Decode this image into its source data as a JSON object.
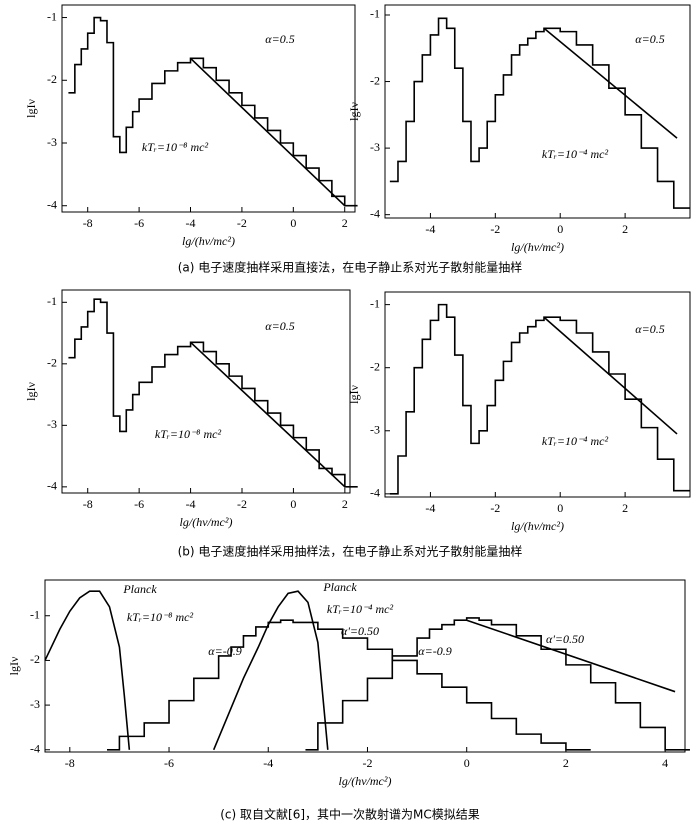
{
  "chart_data": [
    {
      "type": "line",
      "xlabel": "lg/(hν/mc²)",
      "ylabel": "lgIν",
      "xlim": [
        -9,
        2.4
      ],
      "ylim": [
        -4.1,
        -0.8
      ],
      "xticks": [
        -8,
        -6,
        -4,
        -2,
        0,
        2
      ],
      "yticks": [
        -1,
        -2,
        -3,
        -4
      ],
      "annotations": [
        "α=0.5",
        "kTᵣ=10⁻⁸ mc²"
      ],
      "series": [
        {
          "color": "#000",
          "step": true,
          "x": [
            -8.75,
            -8.5,
            -8.25,
            -8,
            -7.75,
            -7.5,
            -7.25,
            -7,
            -6.75,
            -6.5,
            -6.25,
            -6,
            -5.5,
            -5,
            -4.5,
            -4,
            -3.5,
            -3,
            -2.5,
            -2,
            -1.5,
            -1,
            -0.5,
            0,
            0.5,
            1,
            1.5,
            2
          ],
          "values": [
            -2.2,
            -1.75,
            -1.5,
            -1.25,
            -1.0,
            -1.05,
            -1.4,
            -2.9,
            -3.15,
            -2.75,
            -2.5,
            -2.3,
            -2.05,
            -1.85,
            -1.72,
            -1.65,
            -1.8,
            -2.0,
            -2.2,
            -2.4,
            -2.6,
            -2.8,
            -3.0,
            -3.2,
            -3.4,
            -3.6,
            -3.85,
            -4.0
          ]
        },
        {
          "color": "#000",
          "step": false,
          "x": [
            -4,
            2
          ],
          "values": [
            -1.65,
            -4.0
          ]
        }
      ]
    },
    {
      "type": "line",
      "xlabel": "lg/(hν/mc²)",
      "ylabel": "lgIν",
      "xlim": [
        -5.4,
        4.0
      ],
      "ylim": [
        -4.05,
        -0.85
      ],
      "xticks": [
        -4,
        -2,
        0,
        2
      ],
      "yticks": [
        -1,
        -2,
        -3,
        -4
      ],
      "annotations": [
        "α=0.5",
        "kTᵣ=10⁻⁴ mc²"
      ],
      "series": [
        {
          "color": "#000",
          "step": true,
          "x": [
            -5.25,
            -5,
            -4.75,
            -4.5,
            -4.25,
            -4,
            -3.75,
            -3.5,
            -3.25,
            -3,
            -2.75,
            -2.5,
            -2.25,
            -2,
            -1.75,
            -1.5,
            -1.25,
            -1,
            -0.75,
            -0.5,
            -0.25,
            0,
            0.5,
            1,
            1.5,
            2,
            2.5,
            3,
            3.5
          ],
          "values": [
            -3.5,
            -3.2,
            -2.6,
            -2.0,
            -1.6,
            -1.3,
            -1.05,
            -1.2,
            -1.8,
            -2.6,
            -3.2,
            -3.0,
            -2.6,
            -2.2,
            -1.9,
            -1.6,
            -1.45,
            -1.35,
            -1.25,
            -1.2,
            -1.2,
            -1.25,
            -1.45,
            -1.75,
            -2.1,
            -2.5,
            -3.0,
            -3.5,
            -3.9
          ]
        },
        {
          "color": "#000",
          "step": false,
          "x": [
            -0.5,
            3.6
          ],
          "values": [
            -1.2,
            -2.85
          ]
        }
      ]
    },
    {
      "type": "line",
      "xlabel": "lg/(hν/mc²)",
      "ylabel": "lgIν",
      "xlim": [
        -9,
        2.2
      ],
      "ylim": [
        -4.1,
        -0.8
      ],
      "xticks": [
        -8,
        -6,
        -4,
        -2,
        0,
        2
      ],
      "yticks": [
        -1,
        -2,
        -3,
        -4
      ],
      "annotations": [
        "α=0.5",
        "kTᵣ=10⁻⁸ mc²"
      ],
      "series": [
        {
          "color": "#000",
          "step": true,
          "x": [
            -8.75,
            -8.5,
            -8.25,
            -8,
            -7.75,
            -7.5,
            -7.25,
            -7,
            -6.75,
            -6.5,
            -6.25,
            -6,
            -5.5,
            -5,
            -4.5,
            -4,
            -3.5,
            -3,
            -2.5,
            -2,
            -1.5,
            -1,
            -0.5,
            0,
            0.5,
            1,
            1.5,
            2
          ],
          "values": [
            -1.9,
            -1.6,
            -1.4,
            -1.15,
            -0.95,
            -1.0,
            -1.5,
            -2.85,
            -3.1,
            -2.75,
            -2.5,
            -2.3,
            -2.05,
            -1.85,
            -1.72,
            -1.65,
            -1.8,
            -2.0,
            -2.2,
            -2.4,
            -2.6,
            -2.8,
            -3.0,
            -3.2,
            -3.4,
            -3.7,
            -3.8,
            -4.0
          ]
        },
        {
          "color": "#000",
          "step": false,
          "x": [
            -4,
            2
          ],
          "values": [
            -1.65,
            -4.0
          ]
        }
      ]
    },
    {
      "type": "line",
      "xlabel": "lg/(hν/mc²)",
      "ylabel": "lgIν",
      "xlim": [
        -5.4,
        4.0
      ],
      "ylim": [
        -4.05,
        -0.8
      ],
      "xticks": [
        -4,
        -2,
        0,
        2
      ],
      "yticks": [
        -1,
        -2,
        -3,
        -4
      ],
      "annotations": [
        "α=0.5",
        "kTᵣ=10⁻⁴ mc²"
      ],
      "series": [
        {
          "color": "#000",
          "step": true,
          "x": [
            -5.25,
            -5,
            -4.75,
            -4.5,
            -4.25,
            -4,
            -3.75,
            -3.5,
            -3.25,
            -3,
            -2.75,
            -2.5,
            -2.25,
            -2,
            -1.75,
            -1.5,
            -1.25,
            -1,
            -0.75,
            -0.5,
            -0.25,
            0,
            0.5,
            1,
            1.5,
            2,
            2.5,
            3,
            3.5
          ],
          "values": [
            -4.0,
            -3.4,
            -2.7,
            -2.0,
            -1.55,
            -1.25,
            -1.0,
            -1.2,
            -1.8,
            -2.6,
            -3.2,
            -3.0,
            -2.6,
            -2.2,
            -1.9,
            -1.6,
            -1.45,
            -1.35,
            -1.25,
            -1.2,
            -1.2,
            -1.25,
            -1.45,
            -1.75,
            -2.1,
            -2.5,
            -2.95,
            -3.45,
            -3.95
          ]
        },
        {
          "color": "#000",
          "step": false,
          "x": [
            -0.5,
            3.6
          ],
          "values": [
            -1.2,
            -3.05
          ]
        }
      ]
    },
    {
      "type": "line",
      "xlabel": "lg/(hν/mc²)",
      "ylabel": "lgIν",
      "xlim": [
        -8.5,
        4.4
      ],
      "ylim": [
        -4.05,
        -0.2
      ],
      "xticks": [
        -8,
        -6,
        -4,
        -2,
        0,
        2,
        4
      ],
      "yticks": [
        -1,
        -2,
        -3,
        -4
      ],
      "annotations": [
        "Planck",
        "kTᵣ=10⁻⁸ mc²",
        "α=-0.9",
        "Planck",
        "kTᵣ=10⁻⁴ mc²",
        "α'=0.50",
        "α=-0.9",
        "α'=0.50"
      ],
      "series": [
        {
          "color": "#000",
          "step": false,
          "x": [
            -8.5,
            -8.2,
            -8,
            -7.8,
            -7.6,
            -7.4,
            -7.2,
            -7,
            -6.9,
            -6.8
          ],
          "values": [
            -2.0,
            -1.3,
            -0.9,
            -0.6,
            -0.45,
            -0.45,
            -0.8,
            -1.7,
            -2.8,
            -4.0
          ]
        },
        {
          "color": "#000",
          "step": true,
          "x": [
            -7.25,
            -7,
            -6.5,
            -6,
            -5.5,
            -5,
            -4.75,
            -4.5,
            -4.25,
            -4,
            -3.75,
            -3.5,
            -3,
            -2.5,
            -2,
            -1.5,
            -1,
            -0.5,
            0,
            0.5,
            1,
            1.5,
            2
          ],
          "values": [
            -4.0,
            -3.7,
            -3.4,
            -2.9,
            -2.4,
            -1.9,
            -1.7,
            -1.45,
            -1.25,
            -1.15,
            -1.1,
            -1.15,
            -1.3,
            -1.5,
            -1.75,
            -2.0,
            -2.3,
            -2.6,
            -2.95,
            -3.3,
            -3.65,
            -3.85,
            -4.0
          ]
        },
        {
          "color": "#000",
          "step": false,
          "x": [
            -5.1,
            -4.8,
            -4.5,
            -4.2,
            -4,
            -3.8,
            -3.6,
            -3.4,
            -3.2,
            -3,
            -2.9,
            -2.8
          ],
          "values": [
            -4.0,
            -3.2,
            -2.4,
            -1.7,
            -1.2,
            -0.8,
            -0.5,
            -0.45,
            -0.7,
            -1.6,
            -2.8,
            -4.0
          ]
        },
        {
          "color": "#000",
          "step": true,
          "x": [
            -3.25,
            -3,
            -2.5,
            -2,
            -1.5,
            -1,
            -0.75,
            -0.5,
            -0.25,
            0,
            0.25,
            0.5,
            1,
            1.5,
            2,
            2.5,
            3,
            3.5,
            4
          ],
          "values": [
            -4.0,
            -3.4,
            -2.9,
            -2.4,
            -1.9,
            -1.5,
            -1.3,
            -1.2,
            -1.1,
            -1.05,
            -1.1,
            -1.2,
            -1.45,
            -1.75,
            -2.1,
            -2.5,
            -2.95,
            -3.5,
            -4.0
          ]
        },
        {
          "color": "#000",
          "step": false,
          "x": [
            0,
            4.2
          ],
          "values": [
            -1.1,
            -2.7
          ]
        }
      ]
    }
  ],
  "captions": [
    "(a) 电子速度抽样采用直接法，在电子静止系对光子散射能量抽样",
    "(b) 电子速度抽样采用抽样法，在电子静止系对光子散射能量抽样",
    "(c) 取自文献[6]，其中一次散射谱为MC模拟结果"
  ]
}
